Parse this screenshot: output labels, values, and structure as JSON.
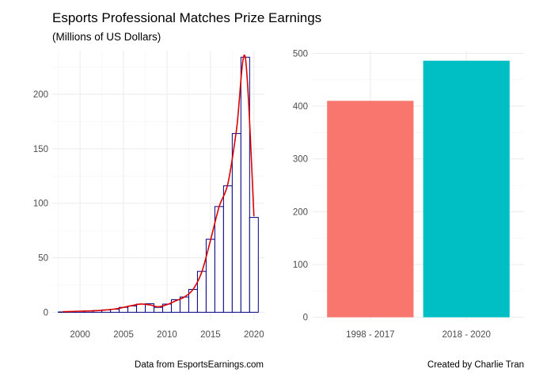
{
  "title": "Esports Professional Matches Prize Earnings",
  "subtitle": "(Millions of US Dollars)",
  "colors": {
    "hist_fill": "#ffffff",
    "hist_stroke": "#000080",
    "smooth_line": "#dd0000",
    "bar_1998_2017": "#F8766D",
    "bar_2018_2020": "#00BFC4",
    "grid_major": "#ebebeb",
    "grid_minor": "#f4f4f4"
  },
  "chart_data": [
    {
      "type": "bar",
      "subtype": "histogram-with-smooth-line",
      "x": [
        1998,
        1999,
        2000,
        2001,
        2002,
        2003,
        2004,
        2005,
        2006,
        2007,
        2008,
        2009,
        2010,
        2011,
        2012,
        2013,
        2014,
        2015,
        2016,
        2017,
        2018,
        2019,
        2020
      ],
      "values": [
        0.3,
        0.6,
        1.0,
        1.2,
        1.6,
        2.2,
        2.8,
        4.5,
        5.8,
        7.5,
        7.8,
        4.5,
        7.5,
        11.5,
        14.0,
        21.0,
        37.5,
        67.0,
        97.0,
        116.0,
        164.0,
        234.0,
        87.0
      ],
      "smooth": [
        [
          1998,
          0.5
        ],
        [
          2000,
          1.0
        ],
        [
          2002,
          1.5
        ],
        [
          2004,
          3.0
        ],
        [
          2005,
          4.5
        ],
        [
          2006,
          6.2
        ],
        [
          2007,
          7.6
        ],
        [
          2008,
          6.8
        ],
        [
          2009,
          5.0
        ],
        [
          2010,
          7.0
        ],
        [
          2011,
          10.5
        ],
        [
          2012,
          14.0
        ],
        [
          2013,
          21.0
        ],
        [
          2014,
          37.0
        ],
        [
          2015,
          66.0
        ],
        [
          2016,
          97.0
        ],
        [
          2017,
          118.0
        ],
        [
          2018,
          168.0
        ],
        [
          2019,
          234.0
        ],
        [
          2020,
          88.0
        ]
      ],
      "xlim": [
        1996.8,
        2021.2
      ],
      "ylim": [
        -7,
        240
      ],
      "xticks": [
        2000,
        2005,
        2010,
        2015,
        2020
      ],
      "yticks": [
        0,
        50,
        100,
        150,
        200
      ],
      "xlabel": "",
      "ylabel": "",
      "grid": true
    },
    {
      "type": "bar",
      "categories": [
        "1998 - 2017",
        "2018 - 2020"
      ],
      "values": [
        410,
        486
      ],
      "ylim": [
        -5,
        505
      ],
      "yticks": [
        0,
        100,
        200,
        300,
        400,
        500
      ],
      "xlabel": "",
      "ylabel": "",
      "grid": true
    }
  ],
  "captions": {
    "left": "Data from EsportsEarnings.com",
    "right": "Created by Charlie Tran"
  }
}
